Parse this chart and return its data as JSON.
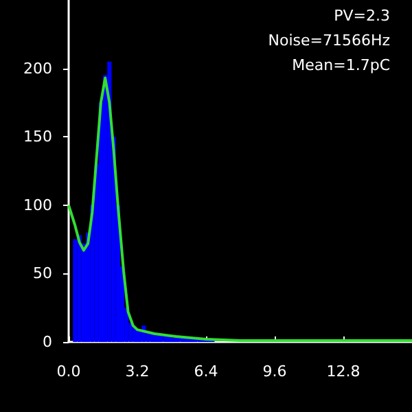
{
  "chart_data": {
    "type": "histogram",
    "bins": [
      0.2,
      0.4,
      0.6,
      0.8,
      1.0,
      1.2,
      1.4,
      1.6,
      1.8,
      2.0,
      2.2,
      2.4,
      2.6,
      2.8,
      3.0,
      3.2,
      3.4,
      3.6,
      3.8,
      4.0,
      4.4,
      4.8,
      5.2,
      5.6,
      6.0,
      6.4,
      6.8
    ],
    "values": [
      75,
      78,
      72,
      80,
      100,
      130,
      175,
      195,
      205,
      150,
      100,
      55,
      25,
      14,
      10,
      8,
      12,
      7,
      6,
      5,
      4,
      3,
      3,
      2,
      2,
      1
    ],
    "color": "#0000ff",
    "series": [
      {
        "type": "line",
        "color": "#33dd33",
        "x": [
          0,
          0.3,
          0.5,
          0.7,
          0.9,
          1.1,
          1.3,
          1.5,
          1.7,
          1.9,
          2.1,
          2.3,
          2.56,
          2.77,
          3.0,
          3.2,
          4.0,
          5.0,
          6.4,
          8.0,
          10.0,
          12.8,
          16.0
        ],
        "values": [
          100,
          85,
          73,
          67,
          72,
          95,
          135,
          175,
          193,
          175,
          140,
          99,
          52,
          22,
          12,
          9,
          6,
          4,
          2,
          1,
          1,
          1,
          1
        ]
      }
    ],
    "xlim": [
      0,
      16
    ],
    "xticks": [
      {
        "value": 0,
        "label": "0.0"
      },
      3.2,
      6.4,
      9.6,
      12.8
    ],
    "ylim": [
      0,
      250
    ],
    "yticks": [
      0,
      50,
      100,
      150,
      200
    ],
    "grid": false,
    "annotations": [
      "PV=2.3",
      "Noise=71566Hz",
      "Mean=1.7pC"
    ]
  }
}
